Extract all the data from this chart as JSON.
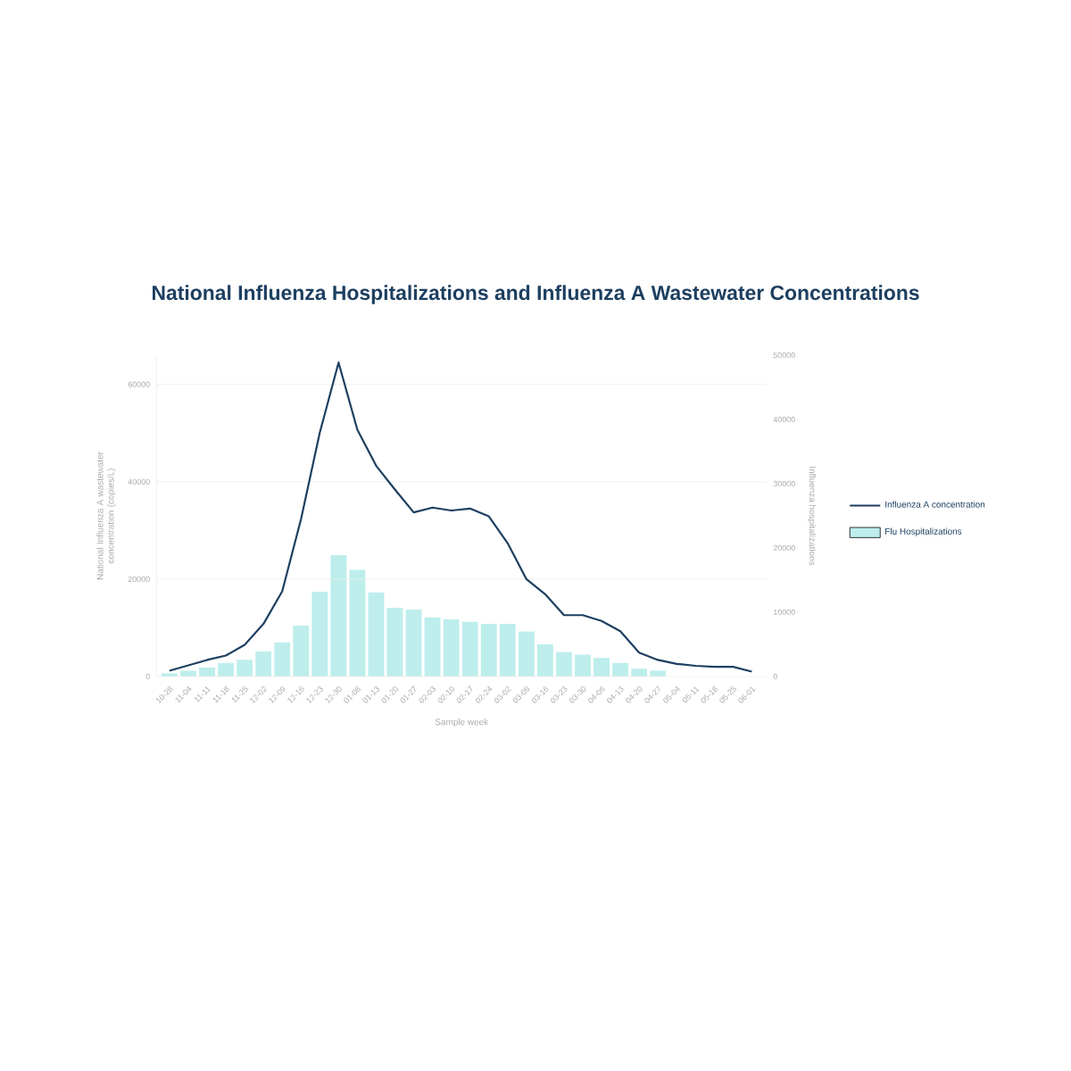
{
  "chart_data": {
    "type": "line",
    "title": "National Influenza Hospitalizations and Influenza A Wastewater Concentrations",
    "xlabel": "Sample week",
    "ylabel": "National Influenza A wastewater concentration (copies/L)",
    "y2label": "Influenza hospitalizations",
    "categories": [
      "10-28",
      "11-04",
      "11-11",
      "11-18",
      "11-25",
      "12-02",
      "12-09",
      "12-16",
      "12-23",
      "12-30",
      "01-06",
      "01-13",
      "01-20",
      "01-27",
      "02-03",
      "02-10",
      "02-17",
      "02-24",
      "03-02",
      "03-09",
      "03-16",
      "03-23",
      "03-30",
      "04-06",
      "04-13",
      "04-20",
      "04-27",
      "05-04",
      "05-11",
      "05-18",
      "05-25",
      "06-01"
    ],
    "series": [
      {
        "name": "Influenza A concentration",
        "color": "#1d3f60",
        "values": [
          1200,
          2300,
          3400,
          4300,
          6500,
          10800,
          17500,
          32300,
          50100,
          64500,
          50700,
          43300,
          38400,
          33700,
          34700,
          34100,
          34500,
          32900,
          27400,
          20000,
          16900,
          12600,
          12600,
          11400,
          9300,
          4900,
          3400,
          2600,
          2200,
          2000,
          2000,
          1000
        ]
      },
      {
        "name": "Flu Hospitalizations",
        "type": "bar",
        "axis": "y2",
        "color": "#bdeeec",
        "values": [
          500,
          900,
          1400,
          2100,
          2600,
          3900,
          5300,
          7900,
          13200,
          18900,
          16600,
          13100,
          10700,
          10400,
          9200,
          8900,
          8500,
          8200,
          8200,
          7000,
          5000,
          3800,
          3400,
          2900,
          2100,
          1200,
          900,
          null,
          null,
          null,
          null,
          null
        ]
      }
    ],
    "ylim": [
      0,
      66000
    ],
    "yticks": [
      0,
      20000,
      40000,
      60000
    ],
    "y2lim": [
      0,
      50000
    ],
    "y2ticks": [
      0,
      10000,
      20000,
      30000,
      40000,
      50000
    ],
    "grid": "y",
    "legend": "right"
  }
}
